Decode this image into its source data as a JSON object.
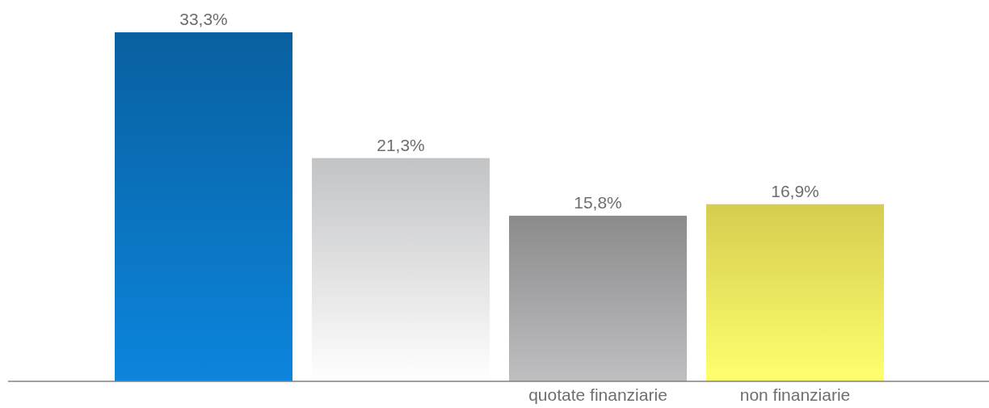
{
  "chart_data": {
    "type": "bar",
    "categories": [
      null,
      null,
      "quotate finanziarie",
      "non finanziarie"
    ],
    "values": [
      33.3,
      21.3,
      15.8,
      16.9
    ],
    "value_labels": [
      "33,3%",
      "21,3%",
      "15,8%",
      "16,9%"
    ],
    "colors": [
      "#0a6fb8",
      "#e0e1e3",
      "#a0a0a2",
      "#f6ec5c"
    ],
    "ylim": [
      0,
      33.3
    ],
    "tick_labels": "x"
  }
}
